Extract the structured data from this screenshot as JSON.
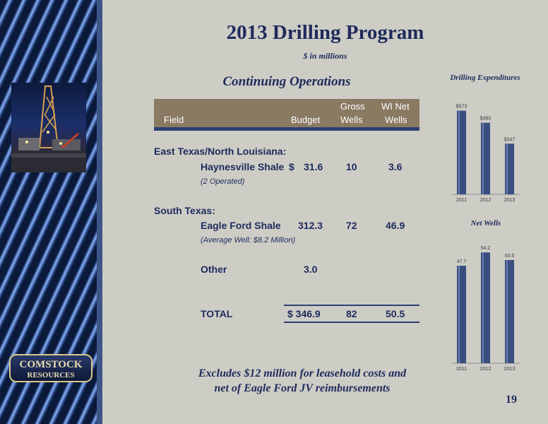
{
  "title": "2013 Drilling Program",
  "subtitle": "$ in millions",
  "section_heading": "Continuing Operations",
  "table": {
    "headers": {
      "field": "Field",
      "budget": "Budget",
      "gross_line1": "Gross",
      "gross_line2": "Wells",
      "net_line1": "WI Net",
      "net_line2": "Wells"
    },
    "region1": "East Texas/North Louisiana:",
    "haynesville": {
      "name": "Haynesville Shale",
      "currency": "$",
      "budget": "31.6",
      "gross": "10",
      "net": "3.6",
      "note": "(2 Operated)"
    },
    "region2": "South Texas:",
    "eagleford": {
      "name": "Eagle Ford Shale",
      "budget": "312.3",
      "gross": "72",
      "net": "46.9",
      "note": "(Average Well: $8.2 Million)"
    },
    "other": {
      "name": "Other",
      "budget": "3.0"
    },
    "total": {
      "name": "TOTAL",
      "budget": "$ 346.9",
      "gross": "82",
      "net": "50.5"
    }
  },
  "footnote_line1": "Excludes $12 million for leasehold costs and",
  "footnote_line2": "net of Eagle Ford JV reimbursements",
  "page_number": "19",
  "logo_text_line1": "COMSTOCK",
  "logo_text_line2": "RESOURCES",
  "colors": {
    "navy": "#1e2a5a",
    "bar": "#3a4f7e",
    "header": "#8a7a62",
    "background": "#cdcdc6"
  },
  "chart_data": [
    {
      "type": "bar",
      "title": "Drilling Expenditures",
      "categories": [
        "2011",
        "2012",
        "2013"
      ],
      "values": [
        573,
        490,
        347
      ],
      "value_labels": [
        "$573",
        "$490",
        "$347"
      ],
      "ylim": [
        0,
        600
      ]
    },
    {
      "type": "bar",
      "title": "Net Wells",
      "categories": [
        "2011",
        "2012",
        "2013"
      ],
      "values": [
        47.7,
        54.2,
        50.5
      ],
      "value_labels": [
        "47.7",
        "54.2",
        "50.5"
      ],
      "ylim": [
        0,
        56
      ]
    }
  ]
}
